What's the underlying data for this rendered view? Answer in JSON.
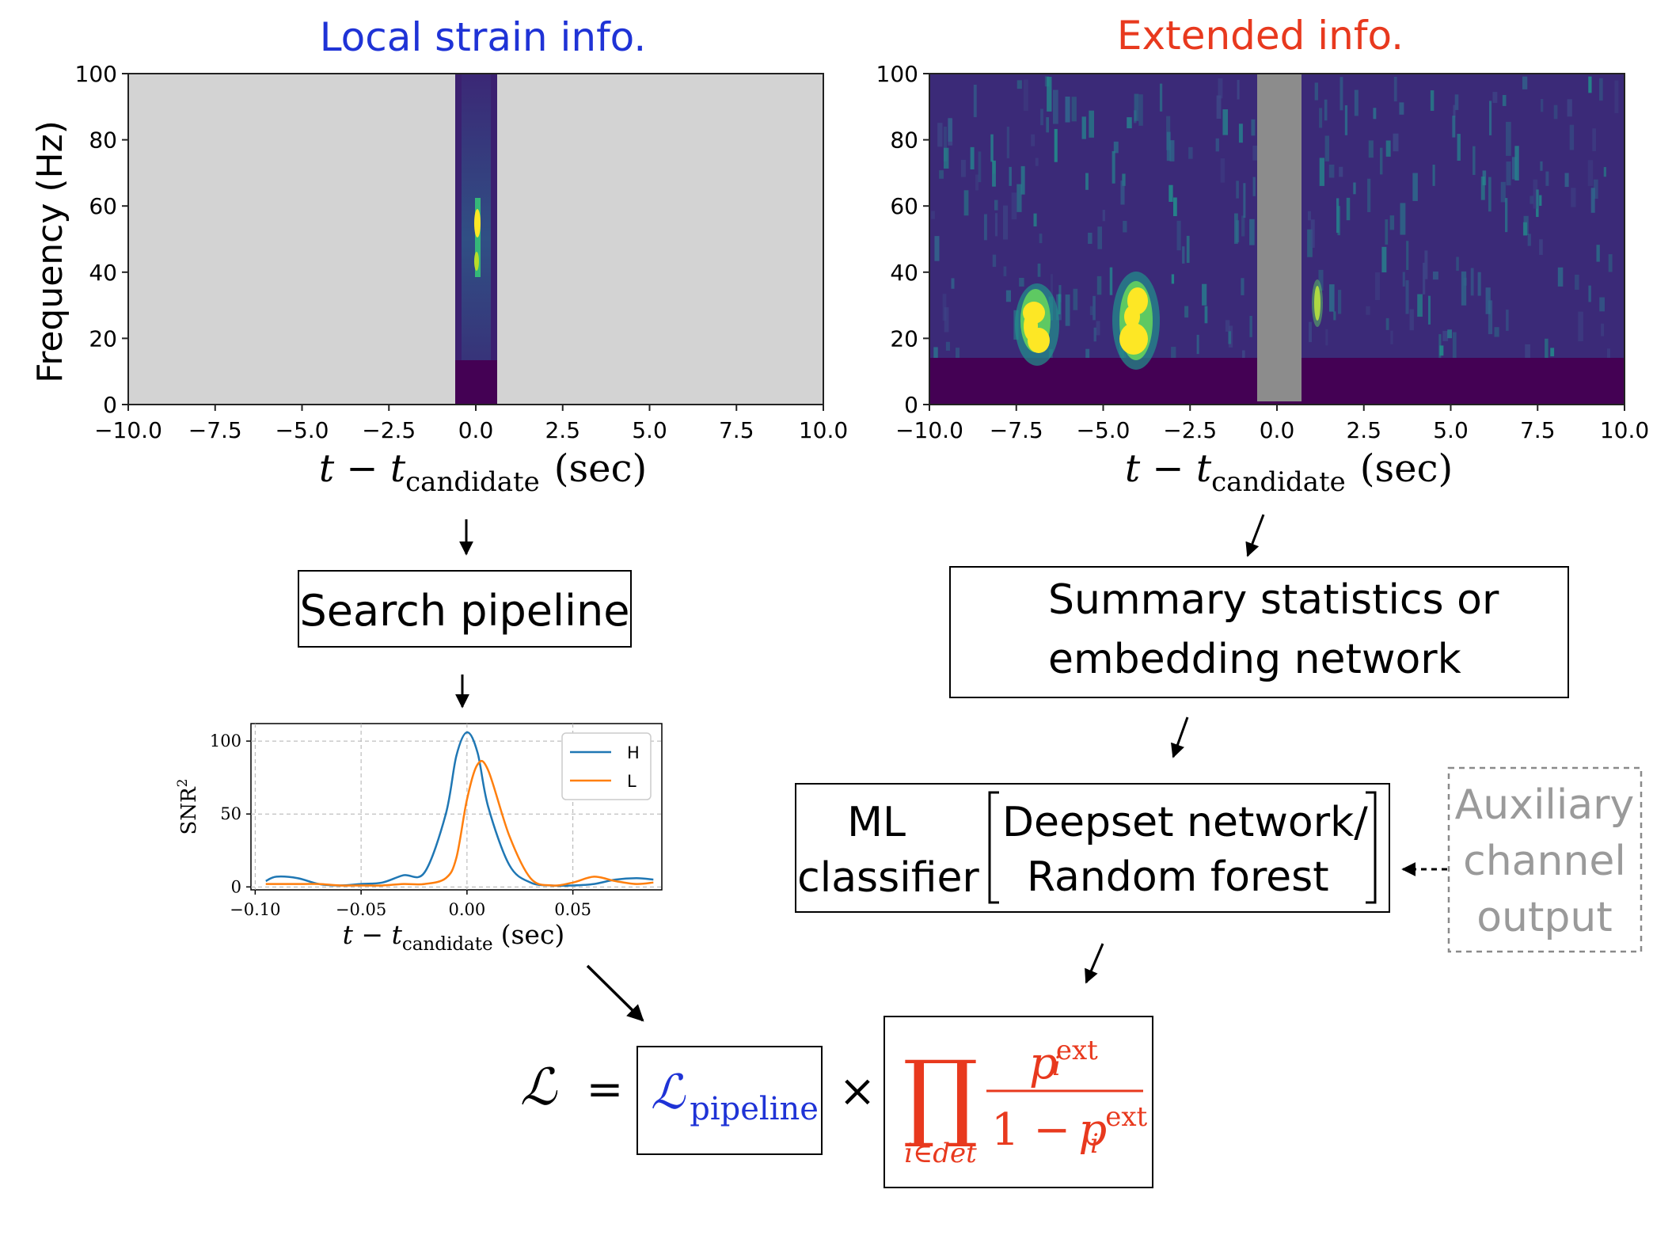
{
  "titles": {
    "local": "Local strain info.",
    "extended": "Extended info.",
    "local_color": "#1f33d6",
    "extended_color": "#e8391e"
  },
  "spectrogram_axes": {
    "ylabel": "Frequency (Hz)",
    "xlabel_main": "t − t",
    "xlabel_sub": "candidate",
    "xlabel_unit": "(sec)",
    "xticks": [
      "−10.0",
      "−7.5",
      "−5.0",
      "−2.5",
      "0.0",
      "2.5",
      "5.0",
      "7.5",
      "10.0"
    ],
    "yticks": [
      "0",
      "20",
      "40",
      "60",
      "80",
      "100"
    ]
  },
  "boxes": {
    "search_pipeline": "Search pipeline",
    "summary_line1": "Summary statistics or",
    "summary_line2": "embedding network",
    "ml_line1": "ML",
    "ml_line2": "classifier",
    "deepset": "Deepset network/",
    "random_forest": "Random forest",
    "aux_line1": "Auxiliary",
    "aux_line2": "channel",
    "aux_line3": "output",
    "aux_color": "#9a9a9a"
  },
  "formula": {
    "lhs": "ℒ",
    "equals": "=",
    "pipeline_symbol": "ℒ",
    "pipeline_sub": "pipeline",
    "times": "×",
    "prod": "∏",
    "prod_sub": "i∈det",
    "num_p": "p",
    "num_sup": "ext",
    "num_sub": "i",
    "den_prefix": "1 −",
    "den_p": "p",
    "den_sup": "ext",
    "den_sub": "i",
    "pipeline_color": "#1f33d6",
    "product_color": "#e8391e"
  },
  "chart_data": {
    "type": "line",
    "x": [
      -0.095,
      -0.09,
      -0.08,
      -0.07,
      -0.06,
      -0.05,
      -0.04,
      -0.03,
      -0.02,
      -0.01,
      -0.005,
      0.0,
      0.005,
      0.01,
      0.02,
      0.03,
      0.04,
      0.05,
      0.06,
      0.07,
      0.08,
      0.088
    ],
    "series": [
      {
        "name": "H",
        "color": "#1f77b4",
        "values": [
          4,
          7,
          6,
          2,
          1,
          2,
          3,
          8,
          10,
          50,
          90,
          106,
          92,
          55,
          15,
          3,
          1,
          1,
          2,
          5,
          6,
          5
        ]
      },
      {
        "name": "L",
        "color": "#ff7f0e",
        "values": [
          2,
          2,
          2,
          2,
          1,
          1,
          1,
          2,
          2,
          6,
          20,
          60,
          84,
          80,
          35,
          6,
          1,
          3,
          7,
          4,
          2,
          3
        ]
      }
    ],
    "xlabel_main": "t − t",
    "xlabel_sub": "candidate",
    "xlabel_unit": "(sec)",
    "ylabel": "SNR",
    "ylabel_sup": "2",
    "xticks": [
      "−0.10",
      "−0.05",
      "0.00",
      "0.05"
    ],
    "xtick_values": [
      -0.1,
      -0.05,
      0.0,
      0.05
    ],
    "yticks": [
      "0",
      "50",
      "100"
    ],
    "ytick_values": [
      0,
      50,
      100
    ],
    "xlim": [
      -0.102,
      0.092
    ],
    "ylim": [
      -2,
      112
    ],
    "grid": true,
    "legend": "top-right"
  }
}
